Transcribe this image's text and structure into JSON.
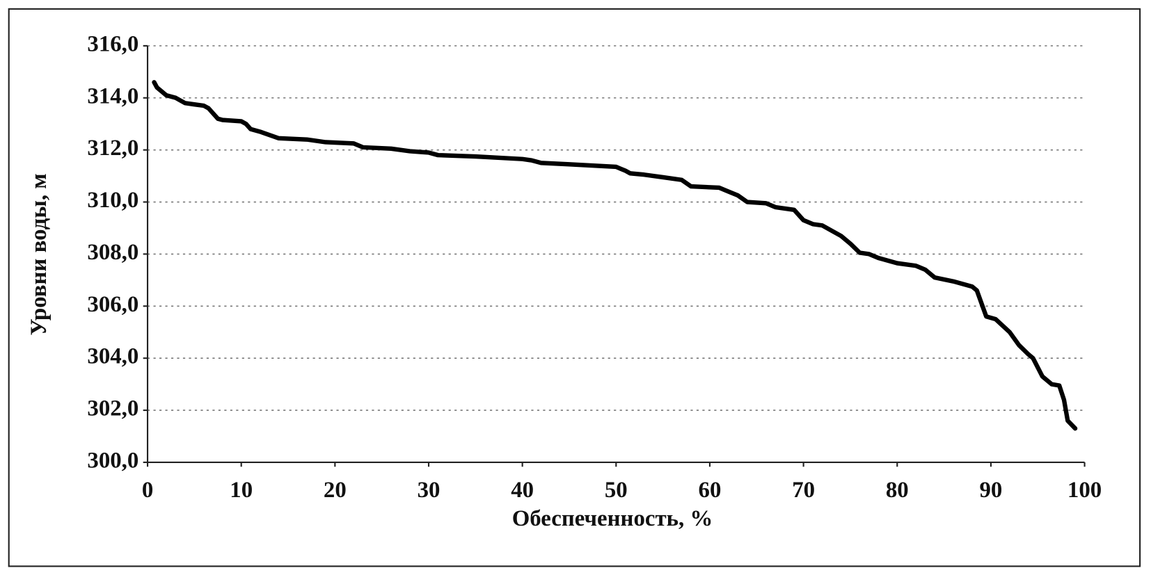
{
  "chart_data": {
    "type": "line",
    "xlabel": "Обеспеченность, %",
    "ylabel": "Уровни воды, м",
    "x": [
      0.7,
      1,
      2,
      3,
      4,
      5,
      6,
      6.5,
      7.5,
      8,
      10,
      10.5,
      11,
      12,
      14,
      17,
      19,
      22,
      23,
      26,
      28,
      30,
      31,
      35,
      40,
      41,
      42,
      45,
      50,
      51,
      51.5,
      53,
      55,
      57,
      58,
      61,
      62,
      63,
      64,
      66,
      67,
      69,
      70,
      71,
      72,
      74,
      75,
      76,
      77,
      78,
      80,
      82,
      83,
      84,
      86,
      88,
      88.5,
      89.5,
      90.5,
      92,
      93,
      94,
      94.5,
      95.5,
      96.5,
      97.3,
      97.8,
      98.2,
      99
    ],
    "values": [
      314.6,
      314.4,
      314.1,
      314.0,
      313.8,
      313.75,
      313.7,
      313.6,
      313.2,
      313.15,
      313.1,
      313.0,
      312.8,
      312.7,
      312.45,
      312.4,
      312.3,
      312.25,
      312.1,
      312.05,
      311.95,
      311.9,
      311.8,
      311.75,
      311.65,
      311.6,
      311.5,
      311.45,
      311.35,
      311.2,
      311.1,
      311.05,
      310.95,
      310.85,
      310.6,
      310.55,
      310.4,
      310.25,
      310.0,
      309.95,
      309.8,
      309.7,
      309.3,
      309.15,
      309.1,
      308.7,
      308.4,
      308.05,
      308.0,
      307.85,
      307.65,
      307.55,
      307.4,
      307.1,
      306.95,
      306.75,
      306.6,
      305.6,
      305.5,
      305.0,
      304.5,
      304.15,
      304.0,
      303.3,
      303.0,
      302.95,
      302.4,
      301.6,
      301.3
    ],
    "color": "#000000",
    "xlim": [
      0,
      100
    ],
    "xticks": [
      0,
      10,
      20,
      30,
      40,
      50,
      60,
      70,
      80,
      90,
      100
    ],
    "ylim": [
      300,
      316
    ],
    "yticks": [
      {
        "value": 300,
        "label": "300,0"
      },
      {
        "value": 302,
        "label": "302,0"
      },
      {
        "value": 304,
        "label": "304,0"
      },
      {
        "value": 306,
        "label": "306,0"
      },
      {
        "value": 308,
        "label": "308,0"
      },
      {
        "value": 310,
        "label": "310,0"
      },
      {
        "value": 312,
        "label": "312,0"
      },
      {
        "value": 314,
        "label": "314,0"
      },
      {
        "value": 316,
        "label": "316,0"
      }
    ],
    "grid": true
  }
}
